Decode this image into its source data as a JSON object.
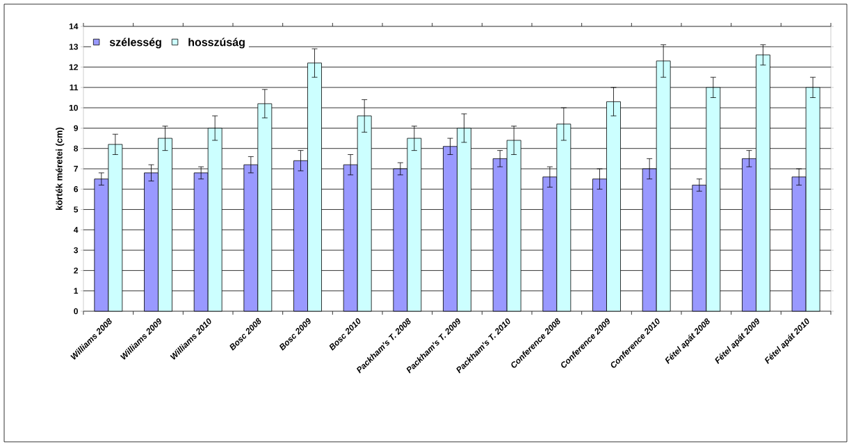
{
  "chart_data": {
    "type": "bar",
    "ylabel": "körték méretei (cm)",
    "categories": [
      "Williams 2008",
      "Williams 2009",
      "Williams 2010",
      "Bosc 2008",
      "Bosc 2009",
      "Bosc 2010",
      "Packham's T. 2008",
      "Packham's T. 2009",
      "Packham's T. 2010",
      "Conference 2008",
      "Conference 2009",
      "Conference 2010",
      "Fétel apát 2008",
      "Fétel apát 2009",
      "Fétel apát 2010"
    ],
    "series": [
      {
        "name": "szélesség",
        "color": "#9999ff",
        "values": [
          6.5,
          6.8,
          6.8,
          7.2,
          7.4,
          7.2,
          7.0,
          8.1,
          7.5,
          6.6,
          6.5,
          7.0,
          6.2,
          7.5,
          6.6
        ],
        "errors": [
          0.3,
          0.4,
          0.3,
          0.4,
          0.5,
          0.5,
          0.3,
          0.4,
          0.4,
          0.5,
          0.5,
          0.5,
          0.3,
          0.4,
          0.4
        ]
      },
      {
        "name": "hosszúság",
        "color": "#ccffff",
        "values": [
          8.2,
          8.5,
          9.0,
          10.2,
          12.2,
          9.6,
          8.5,
          9.0,
          8.4,
          9.2,
          10.3,
          12.3,
          11.0,
          12.6,
          11.0
        ],
        "errors": [
          0.5,
          0.6,
          0.6,
          0.7,
          0.7,
          0.8,
          0.6,
          0.7,
          0.7,
          0.8,
          0.7,
          0.8,
          0.5,
          0.5,
          0.5
        ]
      }
    ],
    "ylim": [
      0,
      14
    ],
    "yticks": [
      0,
      1,
      2,
      3,
      4,
      5,
      6,
      7,
      8,
      9,
      10,
      11,
      12,
      13,
      14
    ],
    "grid": "y",
    "legend": "top left"
  }
}
